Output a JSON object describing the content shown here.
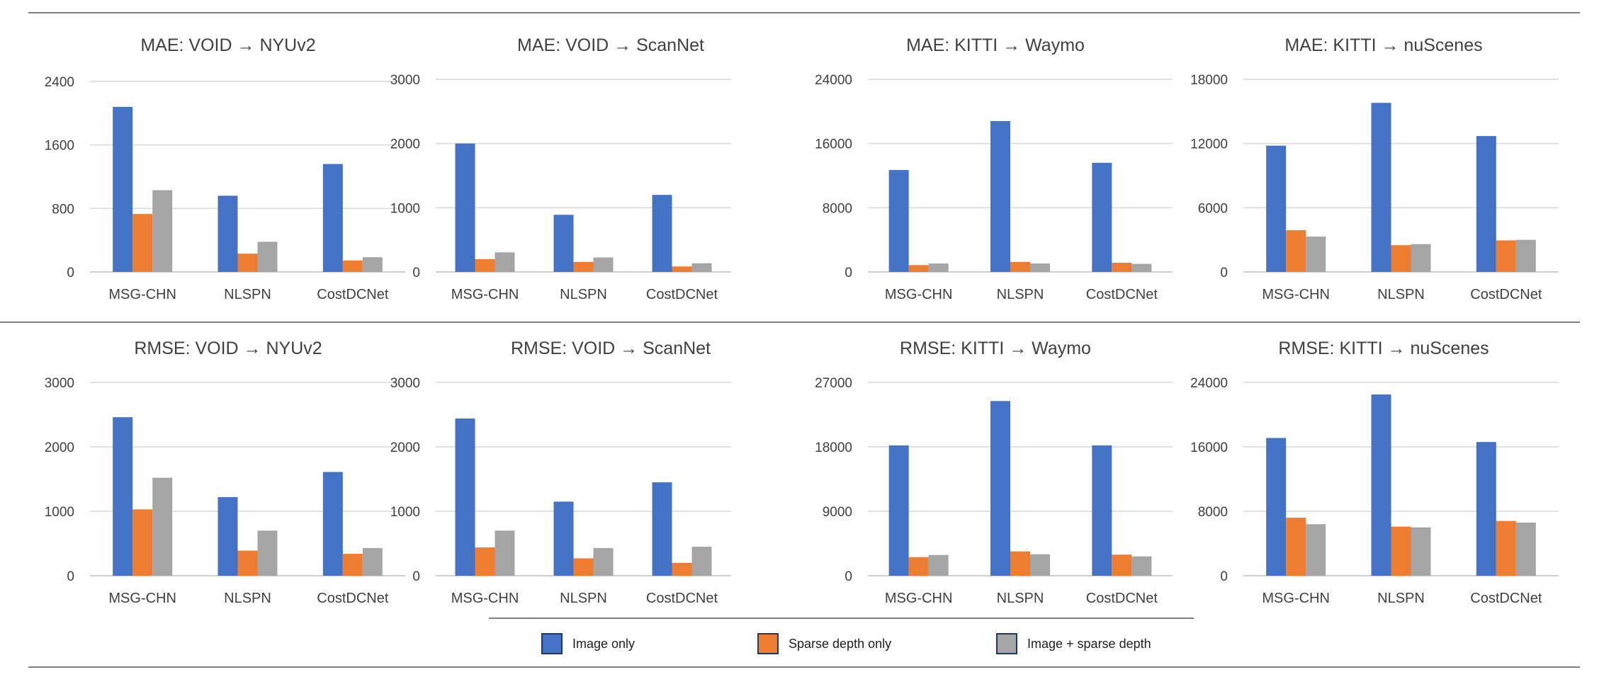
{
  "colors": {
    "image_only": "#4472C4",
    "sparse_depth_only": "#ED7D31",
    "image_sparse": "#A5A5A5",
    "swatch_border": "#1F3864"
  },
  "legend": [
    {
      "name": "Image only",
      "color": "#4472C4"
    },
    {
      "name": "Sparse depth only",
      "color": "#ED7D31"
    },
    {
      "name": "Image + sparse depth",
      "color": "#A5A5A5"
    }
  ],
  "chart_data": [
    {
      "type": "bar",
      "title": "MAE: VOID → NYUv2",
      "categories": [
        "MSG-CHN",
        "NLSPN",
        "CostDCNet"
      ],
      "ylim": [
        0,
        2400
      ],
      "yticks": [
        0,
        800,
        1600,
        2400
      ],
      "ytick_labels": [
        "0",
        "800",
        "1600",
        "2400"
      ],
      "series": [
        {
          "name": "Image only",
          "values": [
            2080,
            960,
            1360
          ]
        },
        {
          "name": "Sparse depth only",
          "values": [
            730,
            230,
            145
          ]
        },
        {
          "name": "Image + sparse depth",
          "values": [
            1030,
            380,
            185
          ]
        }
      ]
    },
    {
      "type": "bar",
      "title": "MAE: VOID → ScanNet",
      "categories": [
        "MSG-CHN",
        "NLSPN",
        "CostDCNet"
      ],
      "ylim": [
        0,
        3000
      ],
      "yticks": [
        0,
        1000,
        2000,
        3000
      ],
      "ytick_labels": [
        "0",
        "1000",
        "2000",
        "3000"
      ],
      "series": [
        {
          "name": "Image only",
          "values": [
            2000,
            890,
            1200
          ]
        },
        {
          "name": "Sparse depth only",
          "values": [
            200,
            155,
            85
          ]
        },
        {
          "name": "Image + sparse depth",
          "values": [
            305,
            225,
            135
          ]
        }
      ]
    },
    {
      "type": "bar",
      "title": "MAE: KITTI → Waymo",
      "categories": [
        "MSG-CHN",
        "NLSPN",
        "CostDCNet"
      ],
      "ylim": [
        0,
        24000
      ],
      "yticks": [
        0,
        8000,
        16000,
        24000
      ],
      "ytick_labels": [
        "0",
        "8000",
        "16000",
        "24000"
      ],
      "series": [
        {
          "name": "Image only",
          "values": [
            12700,
            18800,
            13600
          ]
        },
        {
          "name": "Sparse depth only",
          "values": [
            850,
            1250,
            1150
          ]
        },
        {
          "name": "Image + sparse depth",
          "values": [
            1050,
            1050,
            1000
          ]
        }
      ]
    },
    {
      "type": "bar",
      "title": "MAE: KITTI → nuScenes",
      "categories": [
        "MSG-CHN",
        "NLSPN",
        "CostDCNet"
      ],
      "ylim": [
        0,
        18000
      ],
      "yticks": [
        0,
        6000,
        12000,
        18000
      ],
      "ytick_labels": [
        "0",
        "6000",
        "12000",
        "18000"
      ],
      "series": [
        {
          "name": "Image only",
          "values": [
            11800,
            15800,
            12700
          ]
        },
        {
          "name": "Sparse depth only",
          "values": [
            3900,
            2500,
            2950
          ]
        },
        {
          "name": "Image + sparse depth",
          "values": [
            3300,
            2600,
            3000
          ]
        }
      ]
    },
    {
      "type": "bar",
      "title": "RMSE: VOID → NYUv2",
      "categories": [
        "MSG-CHN",
        "NLSPN",
        "CostDCNet"
      ],
      "ylim": [
        0,
        3000
      ],
      "yticks": [
        0,
        1000,
        2000,
        3000
      ],
      "ytick_labels": [
        "0",
        "1000",
        "2000",
        "3000"
      ],
      "series": [
        {
          "name": "Image only",
          "values": [
            2460,
            1220,
            1610
          ]
        },
        {
          "name": "Sparse depth only",
          "values": [
            1030,
            390,
            340
          ]
        },
        {
          "name": "Image + sparse depth",
          "values": [
            1520,
            700,
            430
          ]
        }
      ]
    },
    {
      "type": "bar",
      "title": "RMSE: VOID → ScanNet",
      "categories": [
        "MSG-CHN",
        "NLSPN",
        "CostDCNet"
      ],
      "ylim": [
        0,
        3000
      ],
      "yticks": [
        0,
        1000,
        2000,
        3000
      ],
      "ytick_labels": [
        "0",
        "1000",
        "2000",
        "3000"
      ],
      "series": [
        {
          "name": "Image only",
          "values": [
            2440,
            1150,
            1450
          ]
        },
        {
          "name": "Sparse depth only",
          "values": [
            440,
            270,
            200
          ]
        },
        {
          "name": "Image + sparse depth",
          "values": [
            700,
            430,
            450
          ]
        }
      ]
    },
    {
      "type": "bar",
      "title": "RMSE: KITTI → Waymo",
      "categories": [
        "MSG-CHN",
        "NLSPN",
        "CostDCNet"
      ],
      "ylim": [
        0,
        27000
      ],
      "yticks": [
        0,
        9000,
        18000,
        27000
      ],
      "ytick_labels": [
        "0",
        "9000",
        "18000",
        "27000"
      ],
      "series": [
        {
          "name": "Image only",
          "values": [
            18200,
            24400,
            18200
          ]
        },
        {
          "name": "Sparse depth only",
          "values": [
            2600,
            3400,
            2950
          ]
        },
        {
          "name": "Image + sparse depth",
          "values": [
            2900,
            3000,
            2700
          ]
        }
      ]
    },
    {
      "type": "bar",
      "title": "RMSE: KITTI → nuScenes",
      "categories": [
        "MSG-CHN",
        "NLSPN",
        "CostDCNet"
      ],
      "ylim": [
        0,
        24000
      ],
      "yticks": [
        0,
        8000,
        16000,
        24000
      ],
      "ytick_labels": [
        "0",
        "8000",
        "16000",
        "24000"
      ],
      "series": [
        {
          "name": "Image only",
          "values": [
            17100,
            22500,
            16600
          ]
        },
        {
          "name": "Sparse depth only",
          "values": [
            7200,
            6100,
            6800
          ]
        },
        {
          "name": "Image + sparse depth",
          "values": [
            6400,
            6000,
            6600
          ]
        }
      ]
    }
  ]
}
